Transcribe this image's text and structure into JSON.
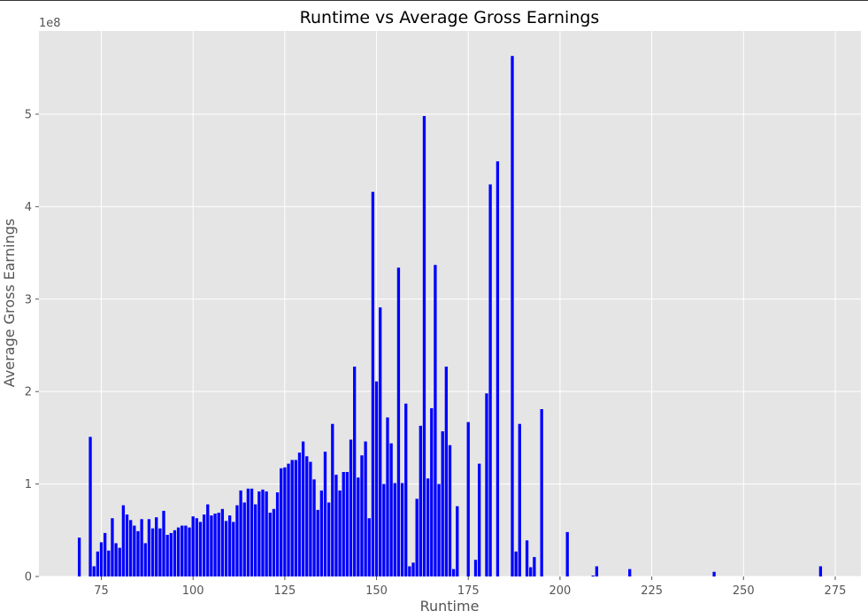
{
  "chart_data": {
    "type": "bar",
    "title": "Runtime vs Average Gross Earnings",
    "xlabel": "Runtime",
    "ylabel": "Average Gross Earnings",
    "y_scale_label": "1e8",
    "xlim": [
      58,
      282
    ],
    "ylim": [
      0,
      590000000
    ],
    "x_ticks": [
      75,
      100,
      125,
      150,
      175,
      200,
      225,
      250,
      275
    ],
    "y_ticks": [
      0,
      100000000,
      200000000,
      300000000,
      400000000,
      500000000
    ],
    "y_tick_labels": [
      "0",
      "1",
      "2",
      "3",
      "4",
      "5"
    ],
    "grid": true,
    "background": "#e5e5e5",
    "bar_color": "#0000ff",
    "series": [
      {
        "x": [
          69,
          72,
          73,
          74,
          75,
          76,
          77,
          78,
          79,
          80,
          81,
          82,
          83,
          84,
          85,
          86,
          87,
          88,
          89,
          90,
          91,
          92,
          93,
          94,
          95,
          96,
          97,
          98,
          99,
          100,
          101,
          102,
          103,
          104,
          105,
          106,
          107,
          108,
          109,
          110,
          111,
          112,
          113,
          114,
          115,
          116,
          117,
          118,
          119,
          120,
          121,
          122,
          123,
          124,
          125,
          126,
          127,
          128,
          129,
          130,
          131,
          132,
          133,
          134,
          135,
          136,
          137,
          138,
          139,
          140,
          141,
          142,
          143,
          144,
          145,
          146,
          147,
          148,
          149,
          150,
          151,
          152,
          153,
          154,
          155,
          156,
          157,
          158,
          159,
          160,
          161,
          162,
          163,
          164,
          165,
          166,
          167,
          168,
          169,
          170,
          171,
          172,
          175,
          177,
          178,
          180,
          181,
          183,
          187,
          188,
          189,
          191,
          192,
          193,
          195,
          202,
          209,
          210,
          219,
          242,
          271
        ],
        "y": [
          42000000,
          151000000,
          11000000,
          27000000,
          37000000,
          47000000,
          28000000,
          63000000,
          36000000,
          31000000,
          77000000,
          67000000,
          61000000,
          55000000,
          49000000,
          62000000,
          36000000,
          62000000,
          52000000,
          64000000,
          52000000,
          71000000,
          45000000,
          47000000,
          50000000,
          53000000,
          55000000,
          55000000,
          53000000,
          65000000,
          63000000,
          59000000,
          67000000,
          78000000,
          66000000,
          68000000,
          69000000,
          73000000,
          60000000,
          66000000,
          59000000,
          77000000,
          93000000,
          80000000,
          95000000,
          95000000,
          78000000,
          92000000,
          94000000,
          92000000,
          69000000,
          73000000,
          91000000,
          117000000,
          118000000,
          122000000,
          126000000,
          126000000,
          134000000,
          146000000,
          130000000,
          124000000,
          105000000,
          72000000,
          93000000,
          135000000,
          80000000,
          165000000,
          110000000,
          93000000,
          113000000,
          113000000,
          148000000,
          227000000,
          107000000,
          131000000,
          146000000,
          63000000,
          416000000,
          211000000,
          291000000,
          100000000,
          172000000,
          144000000,
          101000000,
          334000000,
          101000000,
          187000000,
          11000000,
          15000000,
          84000000,
          163000000,
          498000000,
          106000000,
          182000000,
          337000000,
          100000000,
          157000000,
          227000000,
          142000000,
          8000000,
          76000000,
          167000000,
          18000000,
          122000000,
          198000000,
          424000000,
          449000000,
          563000000,
          27000000,
          165000000,
          39000000,
          10000000,
          21000000,
          181000000,
          48000000,
          1000000,
          11000000,
          8000000,
          5000000,
          11000000
        ]
      }
    ]
  }
}
